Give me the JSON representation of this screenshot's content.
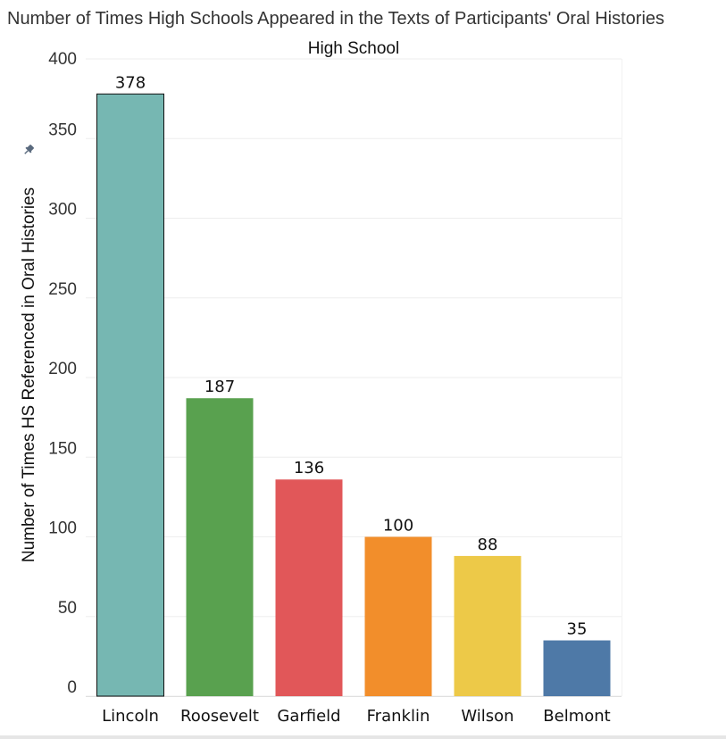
{
  "title": "Number of Times High Schools Appeared in the Texts of Participants' Oral Histories",
  "chart_data": {
    "type": "bar",
    "title": "Number of Times High Schools Appeared in the Texts of Participants' Oral Histories",
    "xlabel": "High School",
    "ylabel": "Number of Times HS Referenced in Oral Histories",
    "categories": [
      "Lincoln",
      "Roosevelt",
      "Garfield",
      "Franklin",
      "Wilson",
      "Belmont"
    ],
    "values": [
      378,
      187,
      136,
      100,
      88,
      35
    ],
    "colors": [
      "#76b7b2",
      "#59a14f",
      "#e15759",
      "#f28e2b",
      "#edc948",
      "#4e79a7"
    ],
    "ylim": [
      0,
      400
    ],
    "yticks": [
      0,
      50,
      100,
      150,
      200,
      250,
      300,
      350,
      400
    ],
    "grid": true,
    "legend": "none",
    "highlighted_category": "Lincoln",
    "data_labels": true
  },
  "icons": {
    "axis_pin": "pin-icon"
  }
}
